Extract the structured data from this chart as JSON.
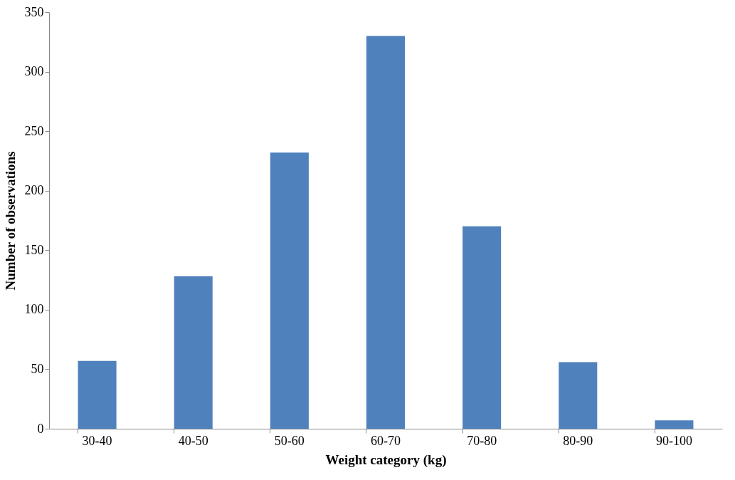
{
  "chart_data": {
    "type": "bar",
    "xlabel": "Weight category (kg)",
    "ylabel": "Number of observations",
    "categories": [
      "30-40",
      "40-50",
      "50-60",
      "60-70",
      "70-80",
      "80-90",
      "90-100"
    ],
    "values": [
      57,
      128,
      232,
      330,
      170,
      56,
      7
    ],
    "color": "#4f81bd",
    "ylim": [
      0,
      350
    ],
    "yticks": [
      0,
      50,
      100,
      150,
      200,
      250,
      300,
      350
    ],
    "grid": false
  }
}
